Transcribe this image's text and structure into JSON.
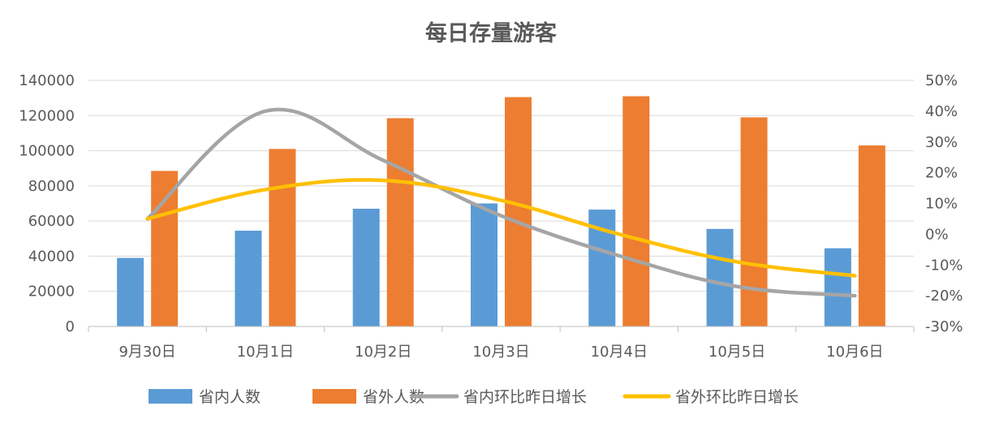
{
  "chart_data": {
    "type": "bar",
    "title": "每日存量游客",
    "categories": [
      "9月30日",
      "10月1日",
      "10月2日",
      "10月3日",
      "10月4日",
      "10月5日",
      "10月6日"
    ],
    "y_ticks": [
      "0",
      "20000",
      "40000",
      "60000",
      "80000",
      "100000",
      "120000",
      "140000"
    ],
    "y2_ticks": [
      "-30%",
      "-20%",
      "-10%",
      "0%",
      "10%",
      "20%",
      "30%",
      "40%",
      "50%"
    ],
    "ylim": [
      0,
      140000
    ],
    "y2lim": [
      -30,
      50
    ],
    "grid": true,
    "legend_position": "bottom",
    "bar_series": [
      {
        "name": "省内人数",
        "color": "#5B9BD5",
        "values": [
          39000,
          54500,
          67000,
          70000,
          66500,
          55500,
          44500
        ]
      },
      {
        "name": "省外人数",
        "color": "#ED7D31",
        "values": [
          88500,
          101000,
          118500,
          130500,
          131000,
          119000,
          103000
        ]
      }
    ],
    "line_series": [
      {
        "name": "省内环比昨日增长",
        "color": "#A5A5A5",
        "axis": "right",
        "values": [
          5,
          40,
          24,
          6,
          -7,
          -17,
          -20
        ]
      },
      {
        "name": "省外环比昨日增长",
        "color": "#FFC000",
        "axis": "right",
        "values": [
          5,
          14.5,
          17.5,
          11,
          0,
          -9,
          -13.5
        ]
      }
    ]
  }
}
